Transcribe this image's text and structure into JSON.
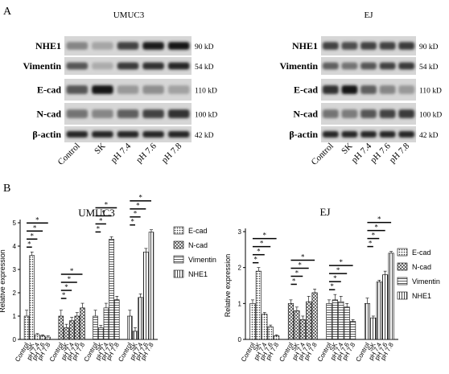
{
  "panel_labels": {
    "a": "A",
    "b": "B"
  },
  "blots": [
    {
      "title": "UMUC3",
      "proteins": [
        "NHE1",
        "Vimentin",
        "E-cad",
        "N-cad",
        "β-actin"
      ],
      "sizes": [
        "90 kD",
        "54 kD",
        "110 kD",
        "100 kD",
        "42 kD"
      ],
      "lanes": [
        "Control",
        "SK",
        "pH 7.4",
        "pH 7.6",
        "pH 7.8"
      ],
      "intensity": [
        [
          0.35,
          0.18,
          0.7,
          0.9,
          0.95
        ],
        [
          0.6,
          0.15,
          0.75,
          0.8,
          0.85
        ],
        [
          0.6,
          0.95,
          0.25,
          0.3,
          0.2
        ],
        [
          0.45,
          0.35,
          0.55,
          0.7,
          0.8
        ],
        [
          0.85,
          0.85,
          0.85,
          0.85,
          0.85
        ]
      ]
    },
    {
      "title": "EJ",
      "proteins": [
        "NHE1",
        "Vimentin",
        "E-cad",
        "N-cad",
        "β-actin"
      ],
      "sizes": [
        "90 kD",
        "54 kD",
        "110 kD",
        "100 kD",
        "42 kD"
      ],
      "lanes": [
        "Control",
        "SK",
        "pH 7.4",
        "pH 7.6",
        "pH 7.8"
      ],
      "intensity": [
        [
          0.7,
          0.65,
          0.7,
          0.7,
          0.75
        ],
        [
          0.55,
          0.45,
          0.6,
          0.7,
          0.75
        ],
        [
          0.8,
          0.95,
          0.55,
          0.35,
          0.25
        ],
        [
          0.45,
          0.4,
          0.6,
          0.7,
          0.75
        ],
        [
          0.85,
          0.85,
          0.85,
          0.85,
          0.85
        ]
      ]
    }
  ],
  "chart_data": [
    {
      "type": "bar",
      "title": "UMUC3",
      "ylabel": "Relative expression",
      "ylim": [
        0,
        5
      ],
      "yticks": [
        0,
        1,
        2,
        3,
        4,
        5
      ],
      "categories": [
        "Control",
        "SK",
        "pH 7.4",
        "pH 7.6",
        "pH 7.8"
      ],
      "series": [
        {
          "name": "E-cad",
          "values": [
            1.0,
            3.6,
            0.2,
            0.15,
            0.1
          ],
          "errors": [
            0.25,
            0.15,
            0.05,
            0.05,
            0.05
          ]
        },
        {
          "name": "N-cad",
          "values": [
            1.0,
            0.5,
            0.8,
            1.0,
            1.35
          ],
          "errors": [
            0.25,
            0.15,
            0.15,
            0.15,
            0.2
          ]
        },
        {
          "name": "Vimentin",
          "values": [
            1.0,
            0.5,
            1.35,
            4.3,
            1.7
          ],
          "errors": [
            0.25,
            0.1,
            0.2,
            0.1,
            0.15
          ]
        },
        {
          "name": "NHE1",
          "values": [
            1.0,
            0.35,
            1.8,
            3.75,
            4.6
          ],
          "errors": [
            0.25,
            0.15,
            0.15,
            0.15,
            0.1
          ]
        }
      ],
      "significance": "*",
      "legend": "right"
    },
    {
      "type": "bar",
      "title": "EJ",
      "ylabel": "Relative expression",
      "ylim": [
        0,
        3
      ],
      "yticks": [
        0,
        1,
        2,
        3
      ],
      "categories": [
        "Control",
        "SK",
        "pH 7.4",
        "pH 7.6",
        "pH 7.8"
      ],
      "series": [
        {
          "name": "E-cad",
          "values": [
            1.0,
            1.9,
            0.7,
            0.35,
            0.1
          ],
          "errors": [
            0.1,
            0.1,
            0.05,
            0.05,
            0.03
          ]
        },
        {
          "name": "N-cad",
          "values": [
            1.0,
            0.8,
            0.55,
            1.05,
            1.3
          ],
          "errors": [
            0.1,
            0.1,
            0.1,
            0.15,
            0.1
          ]
        },
        {
          "name": "Vimentin",
          "values": [
            1.0,
            1.1,
            1.05,
            0.9,
            0.5
          ],
          "errors": [
            0.1,
            0.15,
            0.15,
            0.1,
            0.05
          ]
        },
        {
          "name": "NHE1",
          "values": [
            1.0,
            0.6,
            1.6,
            1.8,
            2.4
          ],
          "errors": [
            0.15,
            0.05,
            0.05,
            0.1,
            0.05
          ]
        }
      ],
      "significance": "*",
      "legend": "right"
    }
  ]
}
